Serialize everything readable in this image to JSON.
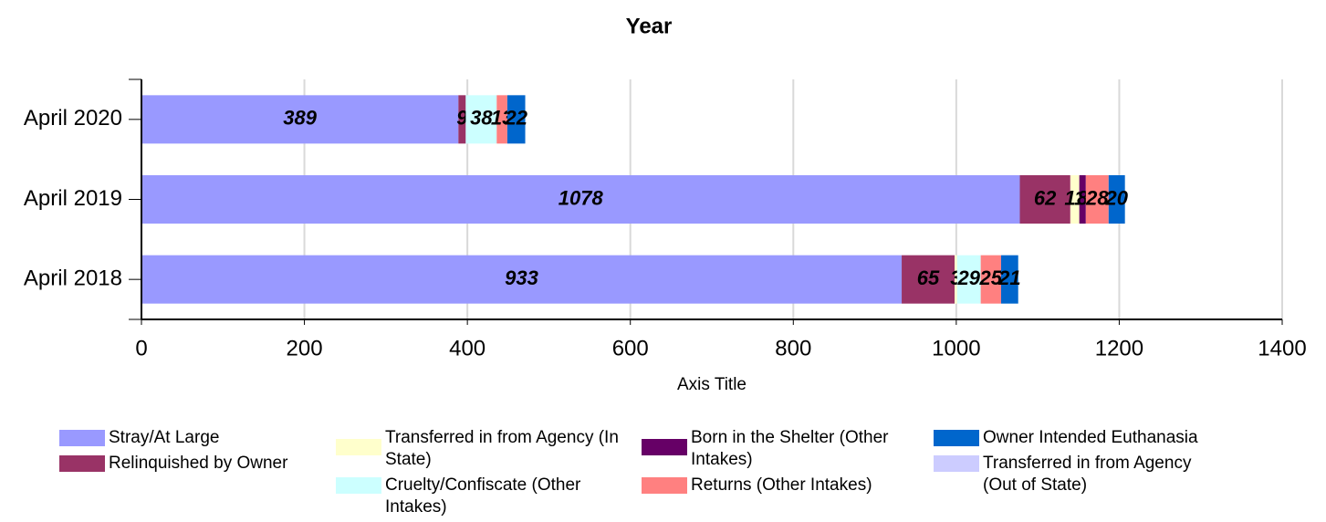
{
  "chart_data": {
    "type": "bar",
    "orientation": "horizontal",
    "stacked": true,
    "title": "Year",
    "x_label": "Axis Title",
    "categories": [
      "April 2020",
      "April 2019",
      "April 2018"
    ],
    "series": [
      {
        "name": "Stray/At Large",
        "color": "#9999ff",
        "values": [
          389,
          1078,
          933
        ]
      },
      {
        "name": "Relinquished by Owner",
        "color": "#993366",
        "values": [
          9,
          62,
          65
        ]
      },
      {
        "name": "Transferred in from Agency (In State)",
        "color": "#ffffcc",
        "values": [
          null,
          11,
          3
        ]
      },
      {
        "name": "Cruelty/Confiscate (Other Intakes)",
        "color": "#ccffff",
        "values": [
          38,
          null,
          29
        ]
      },
      {
        "name": "Born in the Shelter (Other Intakes)",
        "color": "#660066",
        "values": [
          null,
          8,
          null
        ]
      },
      {
        "name": "Returns (Other Intakes)",
        "color": "#ff8080",
        "values": [
          13,
          28,
          25
        ]
      },
      {
        "name": "Owner Intended Euthanasia",
        "color": "#0066cc",
        "values": [
          22,
          20,
          21
        ]
      },
      {
        "name": "Transferred in from Agency (Out of State)",
        "color": "#ccccff",
        "values": [
          null,
          null,
          null
        ]
      }
    ],
    "xlim": [
      0,
      1400
    ],
    "xticks": [
      0,
      200,
      400,
      600,
      800,
      1000,
      1200,
      1400
    ],
    "grid": true
  }
}
